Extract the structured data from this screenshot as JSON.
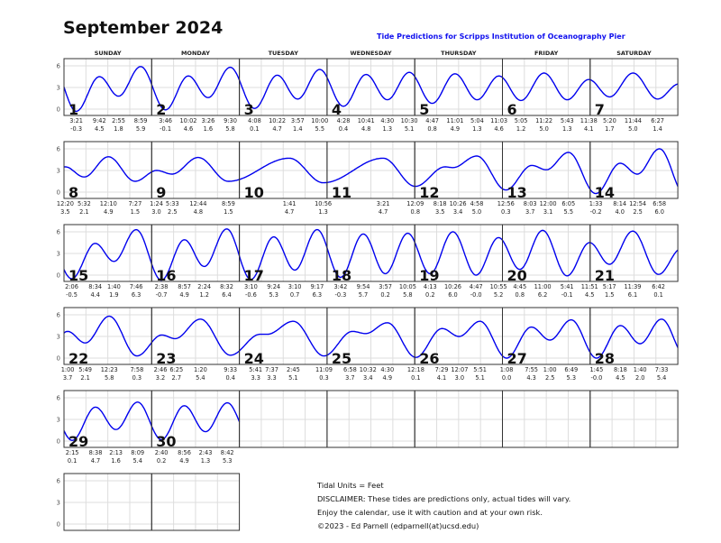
{
  "title": "September 2024",
  "subtitle": "Tide Predictions for Scripps Institution of Oceanography Pier",
  "weekdays": [
    "SUNDAY",
    "MONDAY",
    "TUESDAY",
    "WEDNESDAY",
    "THURSDAY",
    "FRIDAY",
    "SATURDAY"
  ],
  "y_axis_ticks": [
    "6",
    "3",
    "0"
  ],
  "curve_color": "#0000ee",
  "days": [
    {
      "day": "1",
      "tides": [
        [
          "3:21",
          "-0.3",
          "am"
        ],
        [
          "9:42",
          "4.5",
          "am"
        ],
        [
          "2:55",
          "1.8",
          "pm"
        ],
        [
          "8:59",
          "5.9",
          "pm"
        ]
      ]
    },
    {
      "day": "2",
      "tides": [
        [
          "3:46",
          "-0.1",
          "am"
        ],
        [
          "10:02",
          "4.6",
          "am"
        ],
        [
          "3:26",
          "1.6",
          "pm"
        ],
        [
          "9:30",
          "5.8",
          "pm"
        ]
      ]
    },
    {
      "day": "3",
      "tides": [
        [
          "4:08",
          "0.1",
          "am"
        ],
        [
          "10:22",
          "4.7",
          "am"
        ],
        [
          "3:57",
          "1.4",
          "pm"
        ],
        [
          "10:00",
          "5.5",
          "pm"
        ]
      ]
    },
    {
      "day": "4",
      "tides": [
        [
          "4:28",
          "0.4",
          "am"
        ],
        [
          "10:41",
          "4.8",
          "am"
        ],
        [
          "4:30",
          "1.3",
          "pm"
        ],
        [
          "10:30",
          "5.1",
          "pm"
        ]
      ]
    },
    {
      "day": "5",
      "tides": [
        [
          "4:47",
          "0.8",
          "am"
        ],
        [
          "11:01",
          "4.9",
          "am"
        ],
        [
          "5:04",
          "1.3",
          "pm"
        ],
        [
          "11:03",
          "4.6",
          "pm"
        ]
      ]
    },
    {
      "day": "6",
      "tides": [
        [
          "5:05",
          "1.2",
          "am"
        ],
        [
          "11:22",
          "5.0",
          "am"
        ],
        [
          "5:43",
          "1.3",
          "pm"
        ],
        [
          "11:38",
          "4.1",
          "pm"
        ]
      ]
    },
    {
      "day": "7",
      "tides": [
        [
          "5:20",
          "1.7",
          "am"
        ],
        [
          "11:44",
          "5.0",
          "am"
        ],
        [
          "6:27",
          "1.4",
          "pm"
        ]
      ]
    },
    {
      "day": "8",
      "tides": [
        [
          "12:20",
          "3.5",
          "am"
        ],
        [
          "5:32",
          "2.1",
          "am"
        ],
        [
          "12:10",
          "4.9",
          "pm"
        ],
        [
          "7:27",
          "1.5",
          "pm"
        ]
      ]
    },
    {
      "day": "9",
      "tides": [
        [
          "1:24",
          "3.0",
          "am"
        ],
        [
          "5:33",
          "2.5",
          "am"
        ],
        [
          "12:44",
          "4.8",
          "pm"
        ],
        [
          "8:59",
          "1.5",
          "pm"
        ]
      ]
    },
    {
      "day": "10",
      "tides": [
        [
          "1:41",
          "4.7",
          "pm"
        ],
        [
          "10:56",
          "1.3",
          "pm"
        ]
      ]
    },
    {
      "day": "11",
      "tides": [
        [
          "3:21",
          "4.7",
          "pm"
        ]
      ]
    },
    {
      "day": "12",
      "tides": [
        [
          "12:09",
          "0.8",
          "am"
        ],
        [
          "8:18",
          "3.5",
          "am"
        ],
        [
          "10:26",
          "3.4",
          "am"
        ],
        [
          "4:58",
          "5.0",
          "pm"
        ]
      ]
    },
    {
      "day": "13",
      "tides": [
        [
          "12:56",
          "0.3",
          "am"
        ],
        [
          "8:03",
          "3.7",
          "am"
        ],
        [
          "12:00",
          "3.1",
          "pm"
        ],
        [
          "6:05",
          "5.5",
          "pm"
        ]
      ]
    },
    {
      "day": "14",
      "tides": [
        [
          "1:33",
          "-0.2",
          "am"
        ],
        [
          "8:14",
          "4.0",
          "am"
        ],
        [
          "12:54",
          "2.5",
          "pm"
        ],
        [
          "6:58",
          "6.0",
          "pm"
        ]
      ]
    },
    {
      "day": "15",
      "tides": [
        [
          "2:06",
          "-0.5",
          "am"
        ],
        [
          "8:34",
          "4.4",
          "am"
        ],
        [
          "1:40",
          "1.9",
          "pm"
        ],
        [
          "7:46",
          "6.3",
          "pm"
        ]
      ]
    },
    {
      "day": "16",
      "tides": [
        [
          "2:38",
          "-0.7",
          "am"
        ],
        [
          "8:57",
          "4.9",
          "am"
        ],
        [
          "2:24",
          "1.2",
          "pm"
        ],
        [
          "8:32",
          "6.4",
          "pm"
        ]
      ]
    },
    {
      "day": "17",
      "tides": [
        [
          "3:10",
          "-0.6",
          "am"
        ],
        [
          "9:24",
          "5.3",
          "am"
        ],
        [
          "3:10",
          "0.7",
          "pm"
        ],
        [
          "9:17",
          "6.3",
          "pm"
        ]
      ]
    },
    {
      "day": "18",
      "tides": [
        [
          "3:42",
          "-0.3",
          "am"
        ],
        [
          "9:54",
          "5.7",
          "am"
        ],
        [
          "3:57",
          "0.2",
          "pm"
        ],
        [
          "10:05",
          "5.8",
          "pm"
        ]
      ]
    },
    {
      "day": "19",
      "tides": [
        [
          "4:13",
          "0.2",
          "am"
        ],
        [
          "10:26",
          "6.0",
          "am"
        ],
        [
          "4:47",
          "-0.0",
          "pm"
        ],
        [
          "10:55",
          "5.2",
          "pm"
        ]
      ]
    },
    {
      "day": "20",
      "tides": [
        [
          "4:45",
          "0.8",
          "am"
        ],
        [
          "11:00",
          "6.2",
          "am"
        ],
        [
          "5:41",
          "-0.1",
          "pm"
        ],
        [
          "11:51",
          "4.5",
          "pm"
        ]
      ]
    },
    {
      "day": "21",
      "tides": [
        [
          "5:17",
          "1.5",
          "am"
        ],
        [
          "11:39",
          "6.1",
          "am"
        ],
        [
          "6:42",
          "0.1",
          "pm"
        ]
      ]
    },
    {
      "day": "22",
      "tides": [
        [
          "1:00",
          "3.7",
          "am"
        ],
        [
          "5:49",
          "2.1",
          "am"
        ],
        [
          "12:23",
          "5.8",
          "pm"
        ],
        [
          "7:58",
          "0.3",
          "pm"
        ]
      ]
    },
    {
      "day": "23",
      "tides": [
        [
          "2:46",
          "3.2",
          "am"
        ],
        [
          "6:25",
          "2.7",
          "am"
        ],
        [
          "1:20",
          "5.4",
          "pm"
        ],
        [
          "9:33",
          "0.4",
          "pm"
        ]
      ]
    },
    {
      "day": "24",
      "tides": [
        [
          "5:41",
          "3.3",
          "am"
        ],
        [
          "7:37",
          "3.3",
          "am"
        ],
        [
          "2:45",
          "5.1",
          "pm"
        ],
        [
          "11:09",
          "0.3",
          "pm"
        ]
      ]
    },
    {
      "day": "25",
      "tides": [
        [
          "6:58",
          "3.7",
          "am"
        ],
        [
          "10:32",
          "3.4",
          "am"
        ],
        [
          "4:30",
          "4.9",
          "pm"
        ]
      ]
    },
    {
      "day": "26",
      "tides": [
        [
          "12:18",
          "0.1",
          "am"
        ],
        [
          "7:29",
          "4.1",
          "am"
        ],
        [
          "12:07",
          "3.0",
          "pm"
        ],
        [
          "5:51",
          "5.1",
          "pm"
        ]
      ]
    },
    {
      "day": "27",
      "tides": [
        [
          "1:08",
          "0.0",
          "am"
        ],
        [
          "7:55",
          "4.3",
          "am"
        ],
        [
          "1:00",
          "2.5",
          "pm"
        ],
        [
          "6:49",
          "5.3",
          "pm"
        ]
      ]
    },
    {
      "day": "28",
      "tides": [
        [
          "1:45",
          "-0.0",
          "am"
        ],
        [
          "8:18",
          "4.5",
          "am"
        ],
        [
          "1:40",
          "2.0",
          "pm"
        ],
        [
          "7:33",
          "5.4",
          "pm"
        ]
      ]
    },
    {
      "day": "29",
      "tides": [
        [
          "2:15",
          "0.1",
          "am"
        ],
        [
          "8:38",
          "4.7",
          "am"
        ],
        [
          "2:13",
          "1.6",
          "pm"
        ],
        [
          "8:09",
          "5.4",
          "pm"
        ]
      ]
    },
    {
      "day": "30",
      "tides": [
        [
          "2:40",
          "0.2",
          "am"
        ],
        [
          "8:56",
          "4.9",
          "am"
        ],
        [
          "2:43",
          "1.3",
          "pm"
        ],
        [
          "8:42",
          "5.3",
          "pm"
        ]
      ]
    }
  ],
  "footer": {
    "units": "Tidal Units = Feet",
    "disclaimer": "DISCLAIMER: These tides are predictions only, actual tides will vary.",
    "enjoy": "Enjoy the calendar, use it with caution and at your own risk.",
    "copyright": "©2023 - Ed Parnell (edparnell(at)ucsd.edu)"
  }
}
